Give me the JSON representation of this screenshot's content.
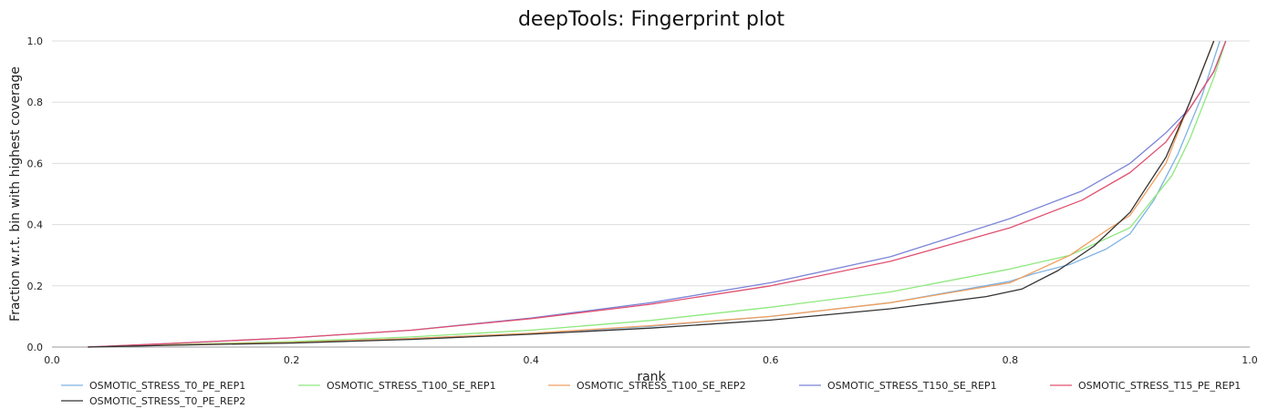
{
  "chart_data": {
    "type": "line",
    "title": "deepTools: Fingerprint plot",
    "xlabel": "rank",
    "ylabel": "Fraction w.r.t. bin with highest coverage",
    "xlim": [
      0,
      1
    ],
    "ylim": [
      0,
      1
    ],
    "xticks": [
      "0.0",
      "0.2",
      "0.4",
      "0.6",
      "0.8",
      "1.0"
    ],
    "yticks": [
      "0.0",
      "0.2",
      "0.4",
      "0.6",
      "0.8",
      "1.0"
    ],
    "grid": "horizontal",
    "legend_position": "bottom",
    "series": [
      {
        "name": "OSMOTIC_STRESS_T0_PE_REP1",
        "color": "#7fb2e3",
        "x": [
          0.03,
          0.1,
          0.2,
          0.3,
          0.4,
          0.5,
          0.6,
          0.7,
          0.8,
          0.82,
          0.85,
          0.88,
          0.9,
          0.92,
          0.94,
          0.96,
          0.975
        ],
        "y": [
          0.0,
          0.008,
          0.016,
          0.028,
          0.045,
          0.068,
          0.1,
          0.145,
          0.215,
          0.24,
          0.27,
          0.32,
          0.37,
          0.48,
          0.63,
          0.82,
          1.0
        ]
      },
      {
        "name": "OSMOTIC_STRESS_T100_SE_REP1",
        "color": "#8ee87e",
        "x": [
          0.03,
          0.1,
          0.2,
          0.3,
          0.4,
          0.5,
          0.6,
          0.7,
          0.8,
          0.85,
          0.9,
          0.935,
          0.95,
          0.97,
          0.98
        ],
        "y": [
          0.0,
          0.008,
          0.018,
          0.033,
          0.055,
          0.087,
          0.13,
          0.18,
          0.255,
          0.3,
          0.39,
          0.56,
          0.68,
          0.88,
          1.0
        ]
      },
      {
        "name": "OSMOTIC_STRESS_T100_SE_REP2",
        "color": "#f0a060",
        "x": [
          0.03,
          0.1,
          0.2,
          0.3,
          0.4,
          0.5,
          0.6,
          0.7,
          0.8,
          0.85,
          0.88,
          0.9,
          0.93,
          0.95,
          0.97
        ],
        "y": [
          0.0,
          0.007,
          0.015,
          0.028,
          0.045,
          0.07,
          0.1,
          0.145,
          0.21,
          0.3,
          0.38,
          0.43,
          0.6,
          0.8,
          1.0
        ]
      },
      {
        "name": "OSMOTIC_STRESS_T150_SE_REP1",
        "color": "#7b84d8",
        "x": [
          0.03,
          0.1,
          0.2,
          0.3,
          0.4,
          0.5,
          0.6,
          0.7,
          0.8,
          0.86,
          0.9,
          0.93,
          0.95,
          0.97,
          0.98
        ],
        "y": [
          0.0,
          0.012,
          0.03,
          0.055,
          0.095,
          0.145,
          0.21,
          0.295,
          0.42,
          0.51,
          0.6,
          0.7,
          0.78,
          0.9,
          1.0
        ]
      },
      {
        "name": "OSMOTIC_STRESS_T15_PE_REP1",
        "color": "#e05070",
        "x": [
          0.03,
          0.1,
          0.2,
          0.3,
          0.4,
          0.5,
          0.6,
          0.7,
          0.8,
          0.86,
          0.9,
          0.93,
          0.95,
          0.97,
          0.98
        ],
        "y": [
          0.0,
          0.012,
          0.03,
          0.055,
          0.093,
          0.14,
          0.2,
          0.28,
          0.39,
          0.48,
          0.57,
          0.67,
          0.78,
          0.9,
          1.0
        ]
      },
      {
        "name": "OSMOTIC_STRESS_T0_PE_REP2",
        "color": "#333333",
        "x": [
          0.03,
          0.1,
          0.2,
          0.3,
          0.4,
          0.5,
          0.6,
          0.7,
          0.78,
          0.81,
          0.84,
          0.87,
          0.9,
          0.93,
          0.95,
          0.97
        ],
        "y": [
          0.0,
          0.006,
          0.013,
          0.025,
          0.042,
          0.062,
          0.088,
          0.125,
          0.165,
          0.19,
          0.25,
          0.33,
          0.44,
          0.62,
          0.8,
          1.0
        ]
      }
    ]
  }
}
